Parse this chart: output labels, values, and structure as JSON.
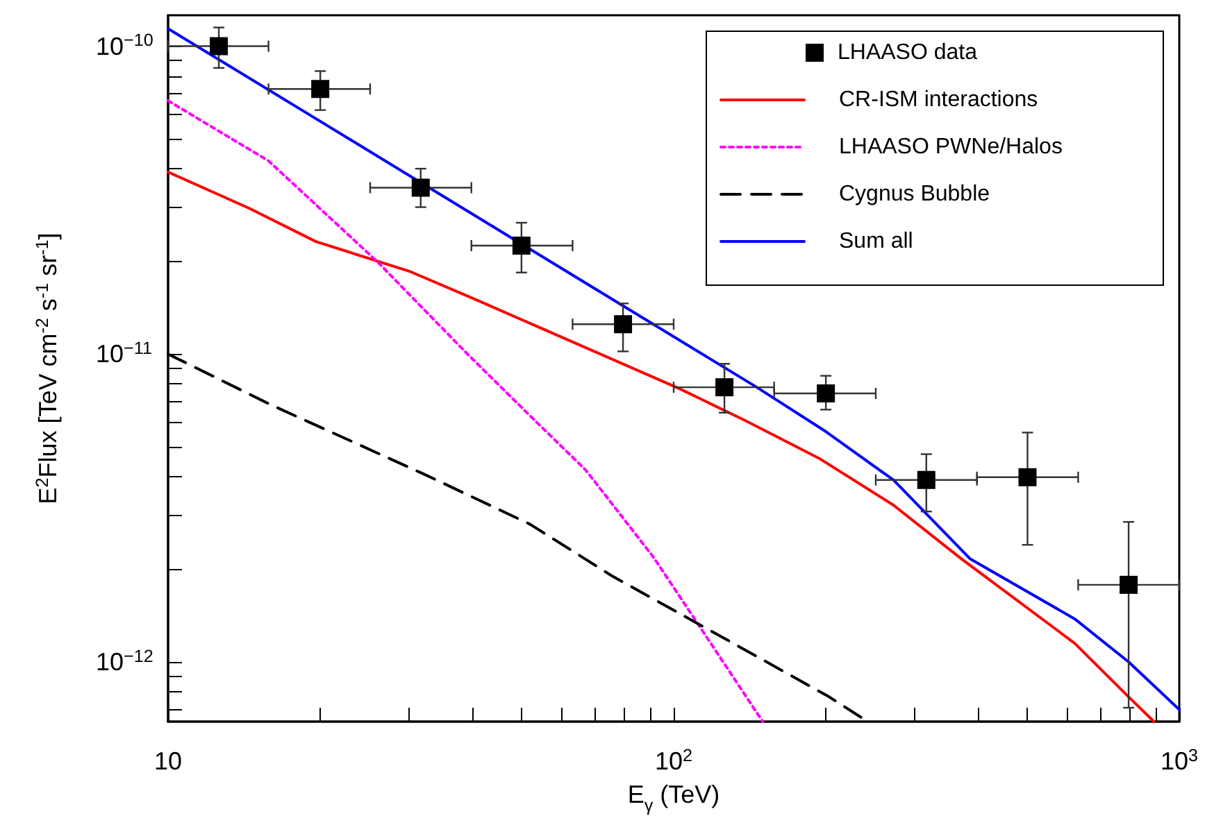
{
  "chart_data": {
    "type": "line",
    "xlabel": "E$_{γ}$ (TeV)",
    "ylabel": "E$^{2}$Flux [TeV cm$^{-2}$ s$^{-1}$ sr$^{-1}$]",
    "log": "xy",
    "grid": false,
    "legend": "top right",
    "xlim": [
      10,
      1000
    ],
    "ylim": [
      6.4e-13,
      1.26e-10
    ],
    "xticks": [
      {
        "value": 10,
        "label": "10"
      },
      {
        "value": 20,
        "label": null
      },
      {
        "value": 30,
        "label": null
      },
      {
        "value": 40,
        "label": null
      },
      {
        "value": 50,
        "label": null
      },
      {
        "value": 60,
        "label": null
      },
      {
        "value": 70,
        "label": null
      },
      {
        "value": 80,
        "label": null
      },
      {
        "value": 90,
        "label": null
      },
      {
        "value": 100,
        "label": "10$^{2}$"
      },
      {
        "value": 200,
        "label": null
      },
      {
        "value": 300,
        "label": null
      },
      {
        "value": 400,
        "label": null
      },
      {
        "value": 500,
        "label": null
      },
      {
        "value": 600,
        "label": null
      },
      {
        "value": 700,
        "label": null
      },
      {
        "value": 800,
        "label": null
      },
      {
        "value": 900,
        "label": null
      },
      {
        "value": 1000,
        "label": "10$^{3}$"
      }
    ],
    "yticks": [
      {
        "value": 7e-13,
        "label": null
      },
      {
        "value": 8e-13,
        "label": null
      },
      {
        "value": 9e-13,
        "label": null
      },
      {
        "value": 1e-12,
        "label": "10$^{−12}$"
      },
      {
        "value": 2e-12,
        "label": null
      },
      {
        "value": 3e-12,
        "label": null
      },
      {
        "value": 4e-12,
        "label": null
      },
      {
        "value": 5e-12,
        "label": null
      },
      {
        "value": 6e-12,
        "label": null
      },
      {
        "value": 7e-12,
        "label": null
      },
      {
        "value": 8e-12,
        "label": null
      },
      {
        "value": 9e-12,
        "label": null
      },
      {
        "value": 1e-11,
        "label": "10$^{−11}$"
      },
      {
        "value": 2e-11,
        "label": null
      },
      {
        "value": 3e-11,
        "label": null
      },
      {
        "value": 4e-11,
        "label": null
      },
      {
        "value": 5e-11,
        "label": null
      },
      {
        "value": 6e-11,
        "label": null
      },
      {
        "value": 7e-11,
        "label": null
      },
      {
        "value": 8e-11,
        "label": null
      },
      {
        "value": 9e-11,
        "label": null
      },
      {
        "value": 1e-10,
        "label": "10$^{−10}$"
      }
    ],
    "series": [
      {
        "name": "LHAASO data",
        "type": "scatter",
        "marker": "square",
        "color": "#000000",
        "x": [
          12.6,
          20,
          31.6,
          50,
          79.4,
          126,
          200,
          316,
          501,
          794
        ],
        "values": [
          1e-10,
          7.26e-11,
          3.47e-11,
          2.25e-11,
          1.25e-11,
          7.8e-12,
          7.45e-12,
          3.9e-12,
          3.98e-12,
          1.78e-12
        ],
        "errors": [
          [
            8.5e-11,
            1.15e-10
          ],
          [
            6.2e-11,
            8.3e-11
          ],
          [
            3e-11,
            4e-11
          ],
          [
            1.84e-11,
            2.67e-11
          ],
          [
            1.02e-11,
            1.46e-11
          ],
          [
            6.45e-12,
            9.3e-12
          ],
          [
            6.6e-12,
            8.5e-12
          ],
          [
            3.08e-12,
            4.73e-12
          ],
          [
            2.4e-12,
            5.56e-12
          ],
          [
            7.1e-13,
            2.85e-12
          ]
        ],
        "xerrors": [
          [
            10,
            15.8
          ],
          [
            15.8,
            25.1
          ],
          [
            25.1,
            39.8
          ],
          [
            39.8,
            63.1
          ],
          [
            63.1,
            100
          ],
          [
            100,
            158
          ],
          [
            158,
            251
          ],
          [
            251,
            398
          ],
          [
            398,
            631
          ],
          [
            631,
            1000
          ]
        ]
      },
      {
        "name": "CR-ISM interactions",
        "type": "line",
        "line_style": "solid",
        "color": "#ff0000",
        "x": [
          10,
          14.5,
          19.6,
          30.2,
          40.7,
          66.9,
          103,
          138,
          195,
          272,
          371,
          621,
          794,
          891
        ],
        "values": [
          3.9e-11,
          2.97e-11,
          2.32e-11,
          1.85e-11,
          1.5e-11,
          1.05e-11,
          7.7e-12,
          6.1e-12,
          4.56e-12,
          3.23e-12,
          2.16e-12,
          1.15e-12,
          7.7e-13,
          6.4e-13
        ]
      },
      {
        "name": "LHAASO PWNe/Halos",
        "type": "line",
        "line_style": "dotted",
        "color": "#ff00ff",
        "x": [
          10,
          15.8,
          25.9,
          39.1,
          52,
          67,
          91,
          110,
          150
        ],
        "values": [
          6.65e-11,
          4.24e-11,
          2e-11,
          1e-11,
          6.3e-12,
          4.2e-12,
          2.2e-12,
          1.38e-12,
          6.4e-13
        ]
      },
      {
        "name": "Cygnus Bubble",
        "type": "line",
        "line_style": "dashed",
        "color": "#000000",
        "x": [
          10,
          16.1,
          31.8,
          52,
          75.6,
          110,
          203,
          242
        ],
        "values": [
          1e-11,
          6.8e-12,
          4.1e-12,
          2.8e-12,
          1.9e-12,
          1.35e-12,
          7.7e-13,
          6.4e-13
        ]
      },
      {
        "name": "Sum all",
        "type": "line",
        "line_style": "solid",
        "color": "#0000ff",
        "x": [
          10,
          20,
          67,
          146,
          200,
          272,
          386,
          621,
          794,
          1000
        ],
        "values": [
          1.14e-10,
          5.7e-11,
          1.7e-11,
          7.8e-12,
          5.6e-12,
          3.9e-12,
          2.16e-12,
          1.38e-12,
          1e-12,
          7e-13
        ]
      }
    ]
  }
}
